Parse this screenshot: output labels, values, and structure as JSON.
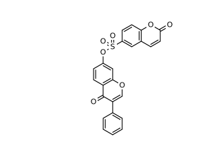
{
  "molecule": {
    "atoms": [
      "O",
      "S",
      "O",
      "O",
      "O",
      "O",
      "O",
      "O"
    ]
  }
}
